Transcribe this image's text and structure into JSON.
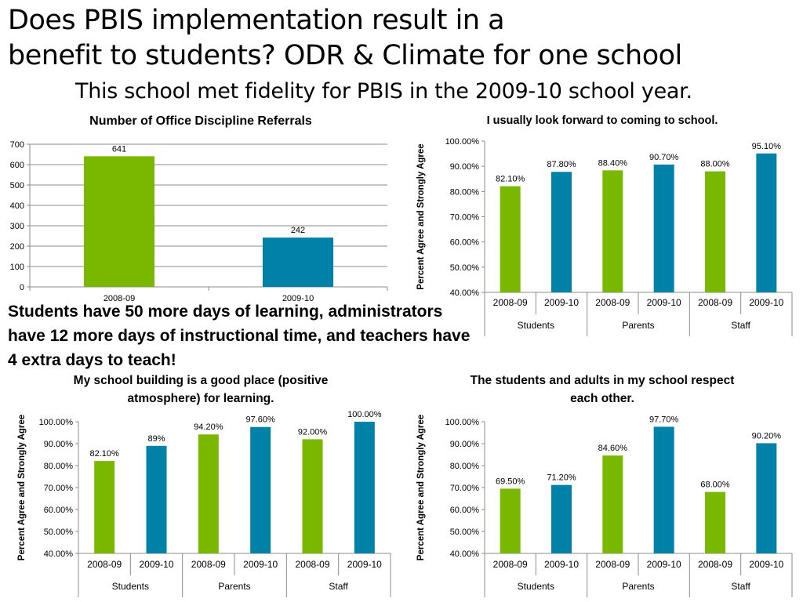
{
  "slide": {
    "title_line1": "Does PBIS implementation result in a",
    "title_line2": "benefit to students? ODR & Climate for one school",
    "subtitle": "This school met fidelity for PBIS in the 2009-10 school year.",
    "callout": "Students have 50 more days of learning, administrators have 12 more days of instructional time, and teachers have 4 extra days to teach!"
  },
  "colors": {
    "green": "#7ab800",
    "blue": "#0081a8",
    "grid": "#8c8c8c"
  },
  "chart_data": [
    {
      "type": "bar",
      "title": "Number of Office Discipline Referrals",
      "categories": [
        "2008-09",
        "2009-10"
      ],
      "values": [
        641,
        242
      ],
      "labels": [
        "641",
        "242"
      ],
      "ylim": [
        0,
        700
      ],
      "yticks": [
        "0",
        "100",
        "200",
        "300",
        "400",
        "500",
        "600",
        "700"
      ],
      "grid": true
    },
    {
      "type": "bar",
      "title": "I usually look forward to coming to school.",
      "ylabel": "Percent Agree and Strongly Agree",
      "categories": [
        "2008-09",
        "2009-10",
        "2008-09",
        "2009-10",
        "2008-09",
        "2009-10"
      ],
      "groups": [
        "Students",
        "Parents",
        "Staff"
      ],
      "values": [
        82.1,
        87.8,
        88.4,
        90.7,
        88.0,
        95.1
      ],
      "labels": [
        "82.10%",
        "87.80%",
        "88.40%",
        "90.70%",
        "88.00%",
        "95.10%"
      ],
      "ylim": [
        40,
        100
      ],
      "yticks": [
        "40.00%",
        "50.00%",
        "60.00%",
        "70.00%",
        "80.00%",
        "90.00%",
        "100.00%"
      ],
      "grid": false
    },
    {
      "type": "bar",
      "title": [
        "My school building is a good place (positive",
        "atmosphere) for learning."
      ],
      "ylabel": "Percent Agree and Strongly Agree",
      "categories": [
        "2008-09",
        "2009-10",
        "2008-09",
        "2009-10",
        "2008-09",
        "2009-10"
      ],
      "groups": [
        "Students",
        "Parents",
        "Staff"
      ],
      "values": [
        82.1,
        89,
        94.2,
        97.6,
        92.0,
        100.0
      ],
      "labels": [
        "82.10%",
        "89%",
        "94.20%",
        "97.60%",
        "92.00%",
        "100.00%"
      ],
      "ylim": [
        40,
        100
      ],
      "yticks": [
        "40.00%",
        "50.00%",
        "60.00%",
        "70.00%",
        "80.00%",
        "90.00%",
        "100.00%"
      ],
      "grid": false
    },
    {
      "type": "bar",
      "title": [
        "The students and adults in my school respect",
        "each other."
      ],
      "ylabel": "Percent Agree and Strongly Agree",
      "categories": [
        "2008-09",
        "2009-10",
        "2008-09",
        "2009-10",
        "2008-09",
        "2009-10"
      ],
      "groups": [
        "Students",
        "Parents",
        "Staff"
      ],
      "values": [
        69.5,
        71.2,
        84.6,
        97.7,
        68.0,
        90.2
      ],
      "labels": [
        "69.50%",
        "71.20%",
        "84.60%",
        "97.70%",
        "68.00%",
        "90.20%"
      ],
      "ylim": [
        40,
        100
      ],
      "yticks": [
        "40.00%",
        "50.00%",
        "60.00%",
        "70.00%",
        "80.00%",
        "90.00%",
        "100.00%"
      ],
      "grid": false
    }
  ]
}
